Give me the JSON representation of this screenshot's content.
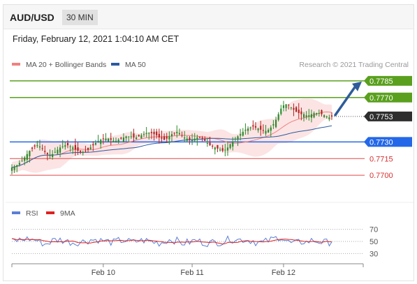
{
  "header": {
    "symbol": "AUD/USD",
    "timeframe": "30 MIN",
    "datetime": "Friday, February 12, 2021 1:04:10 AM CET"
  },
  "legend": {
    "ma20_label": "MA 20 + Bollinger Bands",
    "ma50_label": "MA 50",
    "ma20_color": "#f08080",
    "ma50_color": "#2c5aa0"
  },
  "credit": "Research © 2021 Trading Central",
  "rsi_legend": {
    "rsi_label": "RSI",
    "ma9_label": "9MA",
    "rsi_color": "#5b7fd6",
    "ma9_color": "#e02020"
  },
  "chart_data": {
    "type": "candlestick",
    "ylim": [
      0.7685,
      0.7795
    ],
    "current_price": "0.7753",
    "levels": [
      {
        "label": "0.7785",
        "value": 0.7785,
        "kind": "resistance",
        "color": "#5aa01e"
      },
      {
        "label": "0.7770",
        "value": 0.777,
        "kind": "resistance",
        "color": "#5aa01e"
      },
      {
        "label": "0.7730",
        "value": 0.773,
        "kind": "pivot",
        "color": "#2468e8"
      },
      {
        "label": "0.7715",
        "value": 0.7715,
        "kind": "support",
        "color": "#e04848"
      },
      {
        "label": "0.7700",
        "value": 0.77,
        "kind": "support",
        "color": "#e04848"
      }
    ],
    "close_series": [
      0.7707,
      0.7708,
      0.7709,
      0.7711,
      0.7713,
      0.7716,
      0.7719,
      0.7722,
      0.7724,
      0.7726,
      0.7727,
      0.7726,
      0.7724,
      0.7721,
      0.7719,
      0.7718,
      0.7719,
      0.7721,
      0.7723,
      0.7725,
      0.7726,
      0.7727,
      0.7727,
      0.7726,
      0.7725,
      0.7723,
      0.7722,
      0.7721,
      0.7721,
      0.7722,
      0.7723,
      0.7725,
      0.7727,
      0.7729,
      0.7731,
      0.7732,
      0.7733,
      0.7733,
      0.7733,
      0.7732,
      0.7731,
      0.7731,
      0.7732,
      0.7733,
      0.7734,
      0.7735,
      0.7735,
      0.7735,
      0.7734,
      0.7734,
      0.7735,
      0.7736,
      0.7737,
      0.7738,
      0.7738,
      0.7738,
      0.7737,
      0.7736,
      0.7734,
      0.7733,
      0.7732,
      0.7733,
      0.7735,
      0.7737,
      0.7738,
      0.7739,
      0.7738,
      0.7736,
      0.7734,
      0.7733,
      0.7732,
      0.7732,
      0.7733,
      0.7734,
      0.7734,
      0.7733,
      0.7731,
      0.7729,
      0.7727,
      0.7726,
      0.7725,
      0.7724,
      0.7723,
      0.7722,
      0.7723,
      0.7725,
      0.7728,
      0.773,
      0.7733,
      0.7735,
      0.7737,
      0.7739,
      0.7741,
      0.7742,
      0.7743,
      0.7744,
      0.7743,
      0.7742,
      0.7741,
      0.774,
      0.774,
      0.7741,
      0.7743,
      0.7746,
      0.775,
      0.7755,
      0.776,
      0.7763,
      0.7764,
      0.7763,
      0.7761,
      0.7759,
      0.7757,
      0.7756,
      0.7755,
      0.7755,
      0.7754,
      0.7754,
      0.7755,
      0.7756,
      0.7756,
      0.7756,
      0.7755,
      0.7754,
      0.7753,
      0.7752,
      0.7753
    ],
    "x_ticks": [
      {
        "label": "Feb 10",
        "index": 36
      },
      {
        "label": "Feb 11",
        "index": 71
      },
      {
        "label": "Feb 12",
        "index": 107
      }
    ],
    "projection": {
      "from": 0.7753,
      "to": 0.7785
    },
    "rsi": {
      "ylim": [
        20,
        80
      ],
      "levels": [
        70,
        50,
        30
      ],
      "level_labels": [
        "70",
        "50",
        "30"
      ]
    }
  }
}
